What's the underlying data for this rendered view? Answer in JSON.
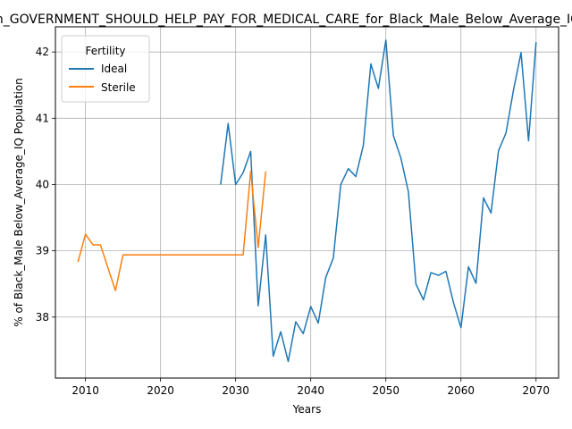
{
  "chart_data": {
    "type": "line",
    "title": "In_GOVERNMENT_SHOULD_HELP_PAY_FOR_MEDICAL_CARE_for_Black_Male_Below_Average_IQ",
    "xlabel": "Years",
    "ylabel": "% of Black_Male Below_Average_IQ Population",
    "xlim": [
      2006,
      2073
    ],
    "ylim": [
      37.08,
      42.38
    ],
    "xticks": [
      2010,
      2020,
      2030,
      2040,
      2050,
      2060,
      2070
    ],
    "yticks": [
      38,
      39,
      40,
      41,
      42
    ],
    "grid": true,
    "legend": {
      "title": "Fertility",
      "placement": "top-left"
    },
    "series": [
      {
        "name": "Ideal",
        "color": "#1f77b4",
        "x": [
          2028,
          2029,
          2030,
          2031,
          2032,
          2033,
          2034,
          2035,
          2036,
          2037,
          2038,
          2039,
          2040,
          2041,
          2042,
          2043,
          2044,
          2045,
          2046,
          2047,
          2048,
          2049,
          2050,
          2051,
          2052,
          2053,
          2054,
          2055,
          2056,
          2057,
          2058,
          2059,
          2060,
          2061,
          2062,
          2063,
          2064,
          2065,
          2066,
          2067,
          2068,
          2069,
          2070
        ],
        "y": [
          40.0,
          40.92,
          40.0,
          40.18,
          40.5,
          38.17,
          39.24,
          37.41,
          37.78,
          37.33,
          37.93,
          37.75,
          38.16,
          37.91,
          38.6,
          38.89,
          40.0,
          40.24,
          40.12,
          40.59,
          41.82,
          41.45,
          42.18,
          40.74,
          40.4,
          39.89,
          38.5,
          38.26,
          38.67,
          38.63,
          38.69,
          38.22,
          37.84,
          38.76,
          38.51,
          39.8,
          39.57,
          40.51,
          40.78,
          41.43,
          41.99,
          40.66,
          42.15
        ]
      },
      {
        "name": "Sterile",
        "color": "#ff7f0e",
        "x": [
          2009,
          2010,
          2011,
          2012,
          2013,
          2014,
          2015,
          2016,
          2017,
          2018,
          2019,
          2020,
          2021,
          2022,
          2023,
          2024,
          2025,
          2026,
          2027,
          2028,
          2029,
          2030,
          2031,
          2032,
          2033,
          2034
        ],
        "y": [
          38.83,
          39.25,
          39.09,
          39.09,
          38.74,
          38.4,
          38.94,
          38.94,
          38.94,
          38.94,
          38.94,
          38.94,
          38.94,
          38.94,
          38.94,
          38.94,
          38.94,
          38.94,
          38.94,
          38.94,
          38.94,
          38.94,
          38.94,
          40.2,
          39.05,
          40.2
        ]
      }
    ]
  }
}
